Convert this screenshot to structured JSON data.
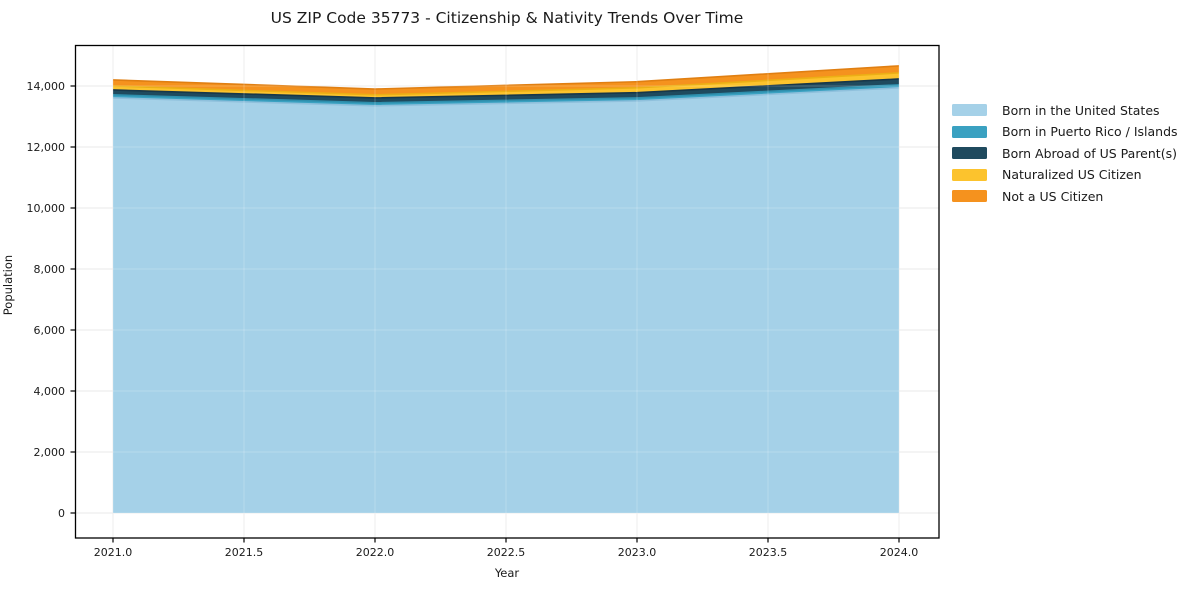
{
  "figure": {
    "title": "US ZIP Code 35773 - Citizenship & Nativity Trends Over Time"
  },
  "chart_data": {
    "type": "area",
    "stacked": true,
    "title": "US ZIP Code 35773 - Citizenship & Nativity Trends Over Time",
    "xlabel": "Year",
    "ylabel": "Population",
    "x": [
      2021,
      2022,
      2023,
      2024
    ],
    "series": [
      {
        "name": "Born in the United States",
        "values": [
          13610,
          13350,
          13510,
          13940
        ],
        "color": "#A5D1E8",
        "edge": "#8FC0DC"
      },
      {
        "name": "Born in Puerto Rico / Islands",
        "values": [
          100,
          100,
          100,
          100
        ],
        "color": "#3AA1C1",
        "edge": "#2E8FAD"
      },
      {
        "name": "Born Abroad of US Parent(s)",
        "values": [
          160,
          160,
          170,
          190
        ],
        "color": "#1F4A5E",
        "edge": "#17374A"
      },
      {
        "name": "Naturalized US Citizen",
        "values": [
          130,
          100,
          160,
          200
        ],
        "color": "#FCC32D",
        "edge": "#ECAF15"
      },
      {
        "name": "Not a US Citizen",
        "values": [
          200,
          190,
          200,
          230
        ],
        "color": "#F5921E",
        "edge": "#E07F12"
      }
    ],
    "totals": [
      14200,
      13900,
      14140,
      14660
    ],
    "xlim": [
      2020.85,
      2024.15
    ],
    "ylim": [
      0,
      15300
    ],
    "grid": true,
    "legend_position": "right",
    "xticks": {
      "values": [
        2021.0,
        2021.5,
        2022.0,
        2022.5,
        2023.0,
        2023.5,
        2024.0
      ],
      "labels": [
        "2021.0",
        "2021.5",
        "2022.0",
        "2022.5",
        "2023.0",
        "2023.5",
        "2024.0"
      ]
    },
    "yticks": {
      "values": [
        0,
        2000,
        4000,
        6000,
        8000,
        10000,
        12000,
        14000
      ],
      "labels": [
        "0",
        "2,000",
        "4,000",
        "6,000",
        "8,000",
        "10,000",
        "12,000",
        "14,000"
      ]
    },
    "colors": {
      "grid": "#E8E8E8",
      "frame": "#000000",
      "text": "#1a1a1a"
    }
  }
}
